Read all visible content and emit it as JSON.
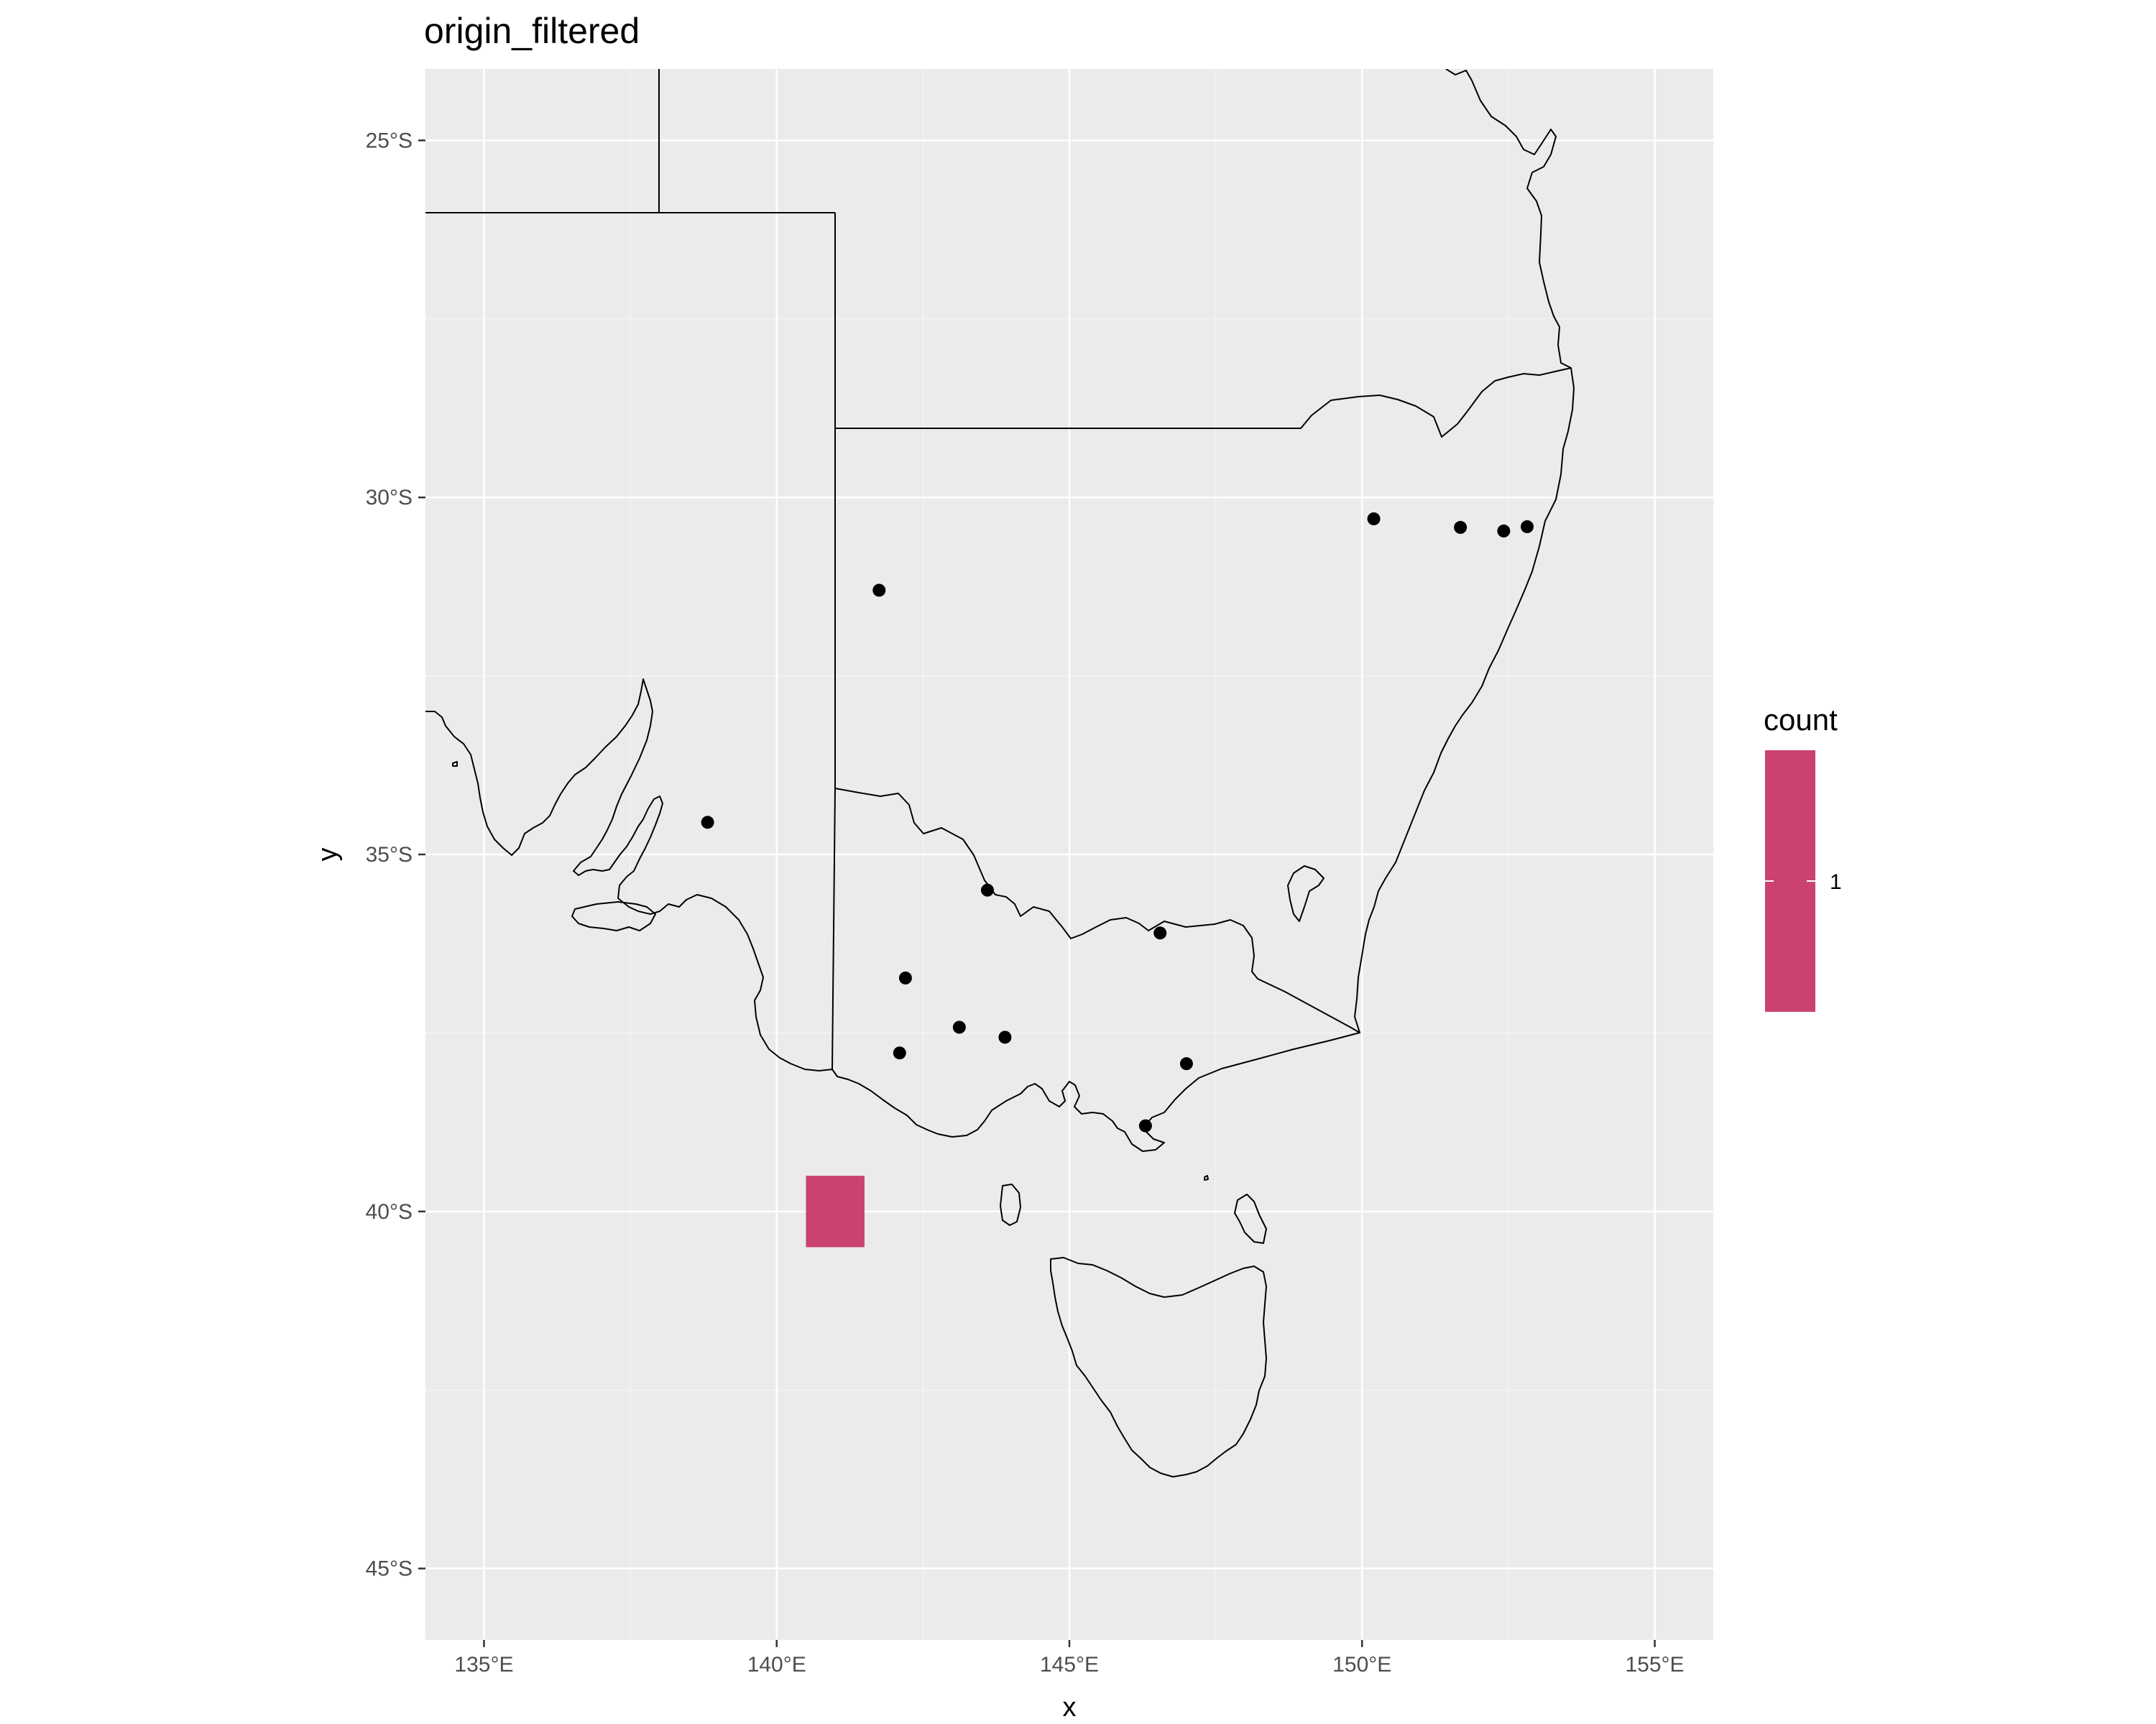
{
  "title": "origin_filtered",
  "chart_data": {
    "type": "map",
    "title": "origin_filtered",
    "xlabel": "x",
    "ylabel": "y",
    "xlim": [
      134,
      156
    ],
    "ylim": [
      -46,
      -24
    ],
    "x_ticks": [
      {
        "value": 135,
        "label": "135°E"
      },
      {
        "value": 140,
        "label": "140°E"
      },
      {
        "value": 145,
        "label": "145°E"
      },
      {
        "value": 150,
        "label": "150°E"
      },
      {
        "value": 155,
        "label": "155°E"
      }
    ],
    "y_ticks": [
      {
        "value": -25,
        "label": "25°S"
      },
      {
        "value": -30,
        "label": "30°S"
      },
      {
        "value": -35,
        "label": "35°S"
      },
      {
        "value": -40,
        "label": "40°S"
      },
      {
        "value": -45,
        "label": "45°S"
      }
    ],
    "grid": true,
    "panel_color": "#ebebeb",
    "points": [
      {
        "lon": 141.75,
        "lat": -31.3
      },
      {
        "lon": 150.2,
        "lat": -30.3
      },
      {
        "lon": 151.68,
        "lat": -30.42
      },
      {
        "lon": 152.42,
        "lat": -30.47
      },
      {
        "lon": 152.82,
        "lat": -30.41
      },
      {
        "lon": 138.82,
        "lat": -34.55
      },
      {
        "lon": 143.6,
        "lat": -35.5
      },
      {
        "lon": 146.55,
        "lat": -36.1
      },
      {
        "lon": 142.2,
        "lat": -36.73
      },
      {
        "lon": 143.12,
        "lat": -37.42
      },
      {
        "lon": 143.9,
        "lat": -37.56
      },
      {
        "lon": 142.1,
        "lat": -37.78
      },
      {
        "lon": 147.0,
        "lat": -37.93
      },
      {
        "lon": 146.3,
        "lat": -38.8
      }
    ],
    "point_color": "#000000",
    "tiles": [
      {
        "lon_min": 140.5,
        "lon_max": 141.5,
        "lat_min": -40.5,
        "lat_max": -39.5,
        "count": 1
      }
    ],
    "legend": {
      "title": "count",
      "labels": [
        "1"
      ],
      "position": "right",
      "color": "#c94270"
    }
  }
}
